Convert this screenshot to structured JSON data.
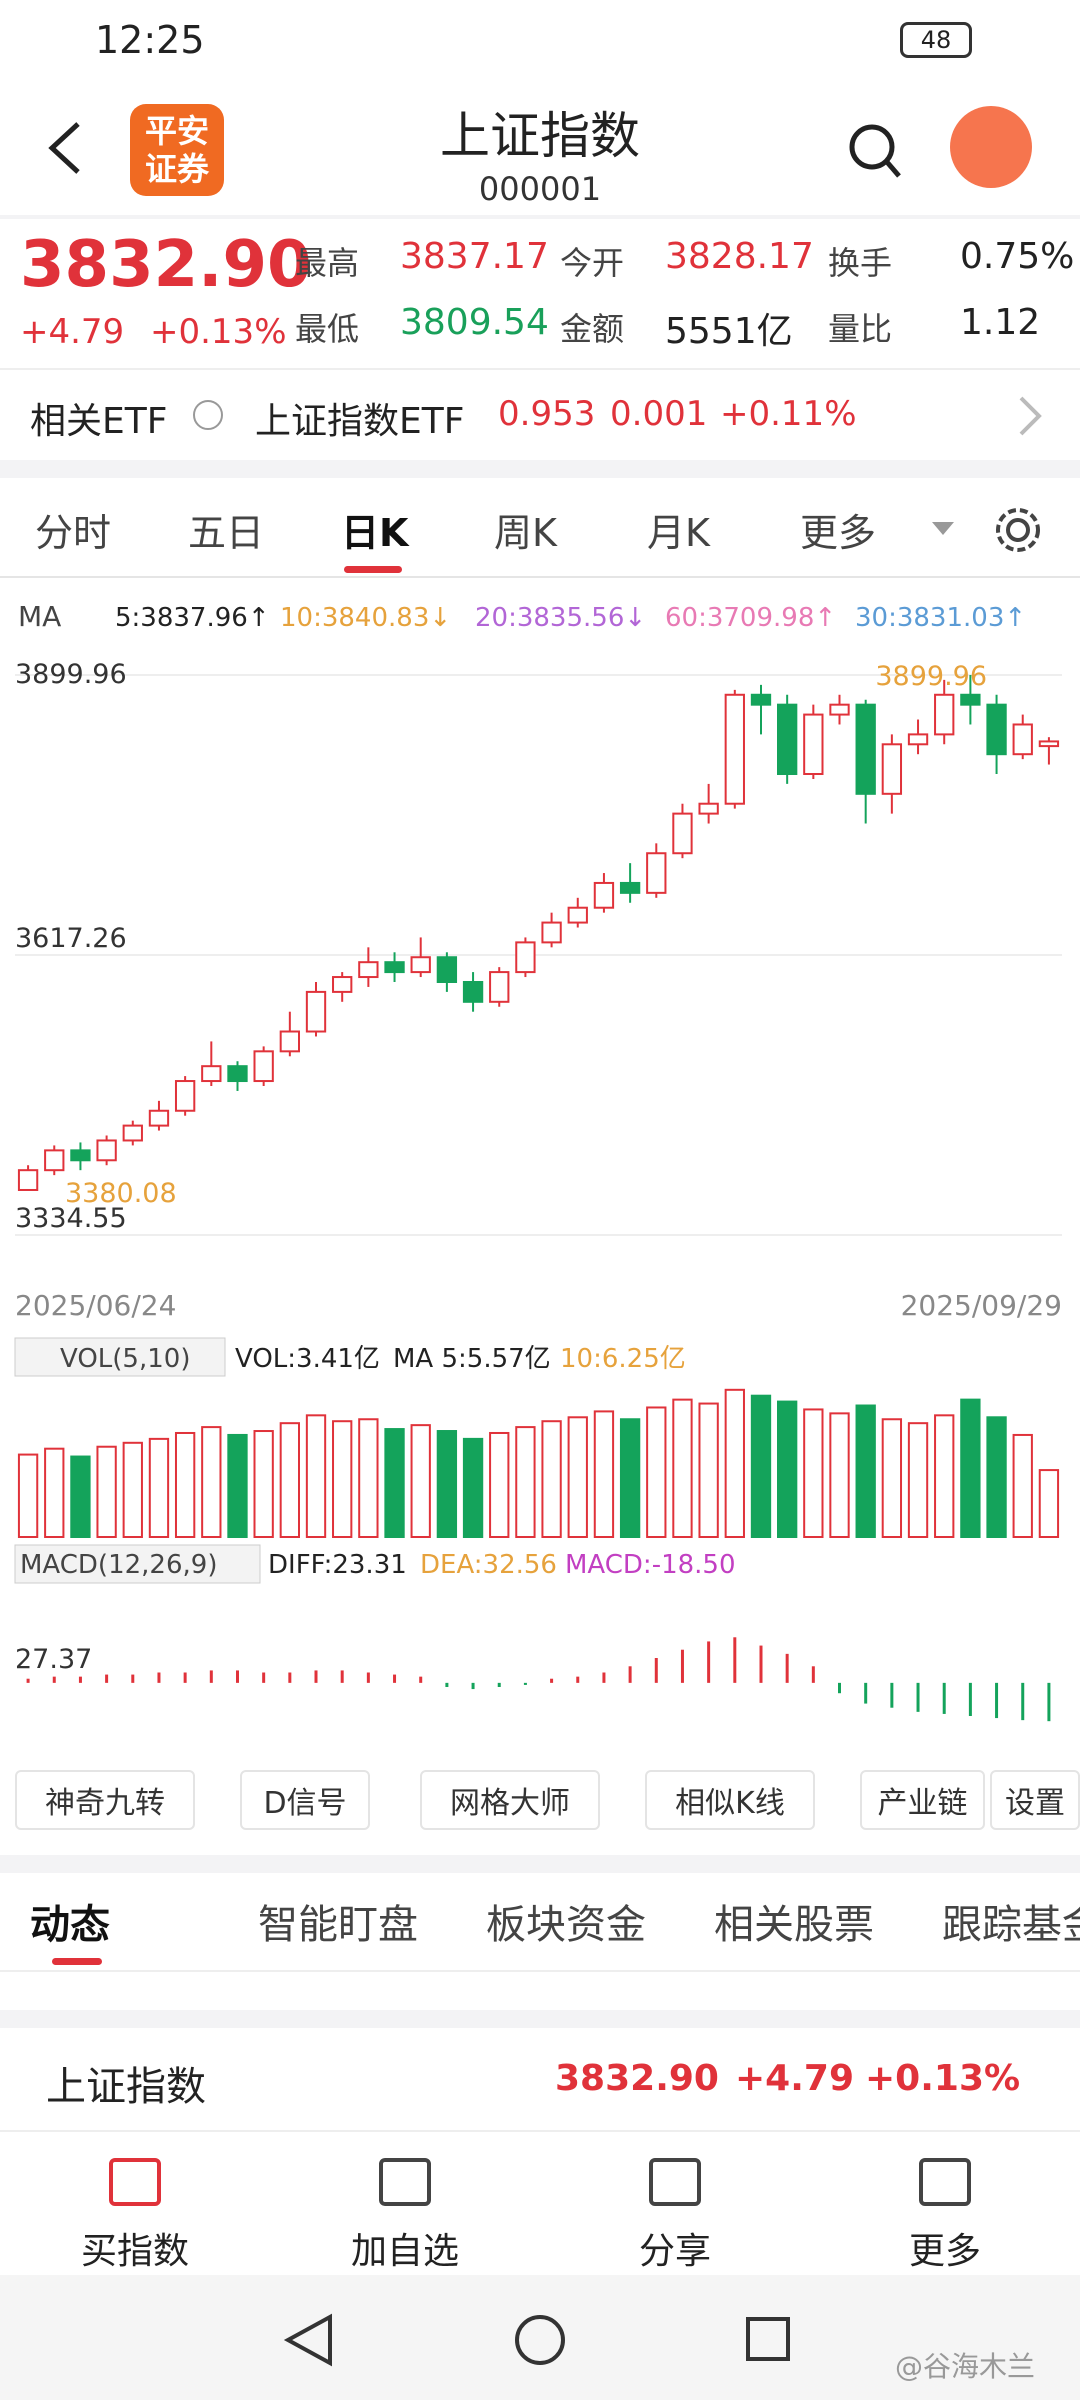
{
  "status": {
    "time": "12:25",
    "battery": "48"
  },
  "header": {
    "logo": [
      "平安",
      "证券"
    ],
    "title": "上证指数",
    "code": "000001"
  },
  "quote": {
    "price": "3832.90",
    "change": "+4.79",
    "pct": "+0.13%",
    "stats": [
      {
        "label": "最高",
        "value": "3837.17"
      },
      {
        "label": "今开",
        "value": "3828.17"
      },
      {
        "label": "换手",
        "value": "0.75%"
      },
      {
        "label": "最低",
        "value": "3809.54"
      },
      {
        "label": "金额",
        "value": "5551亿"
      },
      {
        "label": "量比",
        "value": "1.12"
      }
    ]
  },
  "etf": {
    "label": "相关ETF",
    "name": "上证指数ETF",
    "price": "0.953",
    "change": "0.001",
    "pct": "+0.11%"
  },
  "tabs": [
    "分时",
    "五日",
    "日K",
    "周K",
    "月K",
    "更多"
  ],
  "ma_legend": {
    "label": "MA",
    "items": [
      {
        "text": "5:3837.96↑",
        "color": "#222222"
      },
      {
        "text": "10:3840.83↓",
        "color": "#e6a23c"
      },
      {
        "text": "20:3835.56↓",
        "color": "#b266d6"
      },
      {
        "text": "60:3709.98↑",
        "color": "#e87ab4"
      },
      {
        "text": "30:3831.03↑",
        "color": "#5b9bd5"
      }
    ]
  },
  "kline": {
    "type": "candlestick",
    "ylim": [
      3334.55,
      3899.96
    ],
    "yticks": [
      3899.96,
      3617.26,
      3334.55
    ],
    "high_label": "3899.96",
    "low_label": "3380.08",
    "dates": [
      "2025/06/24",
      "2025/09/29"
    ],
    "candles": [
      [
        3380,
        3400,
        3405,
        3380.08
      ],
      [
        3400,
        3420,
        3425,
        3395
      ],
      [
        3420,
        3410,
        3428,
        3400
      ],
      [
        3410,
        3430,
        3435,
        3405
      ],
      [
        3430,
        3445,
        3450,
        3425
      ],
      [
        3445,
        3460,
        3470,
        3440
      ],
      [
        3460,
        3490,
        3495,
        3455
      ],
      [
        3490,
        3505,
        3530,
        3485
      ],
      [
        3505,
        3490,
        3510,
        3480
      ],
      [
        3490,
        3520,
        3525,
        3485
      ],
      [
        3520,
        3540,
        3560,
        3515
      ],
      [
        3540,
        3580,
        3590,
        3535
      ],
      [
        3580,
        3595,
        3600,
        3570
      ],
      [
        3595,
        3610,
        3625,
        3585
      ],
      [
        3610,
        3600,
        3620,
        3590
      ],
      [
        3600,
        3615,
        3635,
        3595
      ],
      [
        3615,
        3590,
        3620,
        3580
      ],
      [
        3590,
        3570,
        3600,
        3560
      ],
      [
        3570,
        3600,
        3605,
        3565
      ],
      [
        3600,
        3630,
        3635,
        3595
      ],
      [
        3630,
        3650,
        3660,
        3625
      ],
      [
        3650,
        3665,
        3675,
        3645
      ],
      [
        3665,
        3690,
        3700,
        3660
      ],
      [
        3690,
        3680,
        3710,
        3670
      ],
      [
        3680,
        3720,
        3730,
        3675
      ],
      [
        3720,
        3760,
        3770,
        3715
      ],
      [
        3760,
        3770,
        3790,
        3750
      ],
      [
        3770,
        3880,
        3885,
        3765
      ],
      [
        3880,
        3870,
        3890,
        3840
      ],
      [
        3870,
        3800,
        3880,
        3790
      ],
      [
        3800,
        3860,
        3870,
        3795
      ],
      [
        3860,
        3870,
        3880,
        3850
      ],
      [
        3870,
        3780,
        3875,
        3750
      ],
      [
        3780,
        3830,
        3840,
        3760
      ],
      [
        3830,
        3840,
        3855,
        3820
      ],
      [
        3840,
        3880,
        3895,
        3830
      ],
      [
        3880,
        3870,
        3899.96,
        3850
      ],
      [
        3870,
        3820,
        3880,
        3800
      ],
      [
        3820,
        3850,
        3860,
        3815
      ],
      [
        3828.17,
        3832.9,
        3837.17,
        3809.54
      ]
    ]
  },
  "volume": {
    "legend": [
      "VOL(5,10)",
      "VOL:3.41亿",
      "MA 5:5.57亿",
      "10:6.25亿"
    ],
    "ylim": [
      0,
      8
    ],
    "values": [
      4.2,
      4.5,
      4.1,
      4.6,
      4.8,
      5.0,
      5.3,
      5.6,
      5.2,
      5.4,
      5.8,
      6.2,
      5.9,
      6.0,
      5.5,
      5.7,
      5.4,
      5.0,
      5.3,
      5.6,
      5.9,
      6.1,
      6.4,
      6.0,
      6.6,
      7.0,
      6.8,
      7.5,
      7.2,
      6.9,
      6.5,
      6.3,
      6.7,
      6.0,
      5.8,
      6.2,
      7.0,
      6.1,
      5.2,
      3.41
    ]
  },
  "macd": {
    "legend": [
      "MACD(12,26,9)",
      "DIFF:23.31",
      "DEA:32.56",
      "MACD:-18.50"
    ],
    "label": "27.37",
    "ylim": [
      -30,
      40
    ],
    "values": [
      2,
      3,
      3,
      4,
      4,
      5,
      5,
      6,
      6,
      5,
      5,
      6,
      6,
      5,
      4,
      3,
      -2,
      -3,
      -2,
      -1,
      2,
      3,
      5,
      8,
      12,
      16,
      20,
      22,
      18,
      14,
      8,
      -5,
      -10,
      -12,
      -14,
      -15,
      -16,
      -17,
      -18,
      -18.5
    ]
  },
  "tools": [
    "神奇九转",
    "D信号",
    "网格大师",
    "相似K线",
    "产业链",
    "设置"
  ],
  "tabs2": [
    "动态",
    "智能盯盘",
    "板块资金",
    "相关股票",
    "跟踪基金"
  ],
  "summary": {
    "name": "上证指数",
    "price": "3832.90",
    "change": "+4.79",
    "pct": "+0.13%"
  },
  "bottom": [
    "买指数",
    "加自选",
    "分享",
    "更多"
  ],
  "watermark": "@谷海木兰"
}
